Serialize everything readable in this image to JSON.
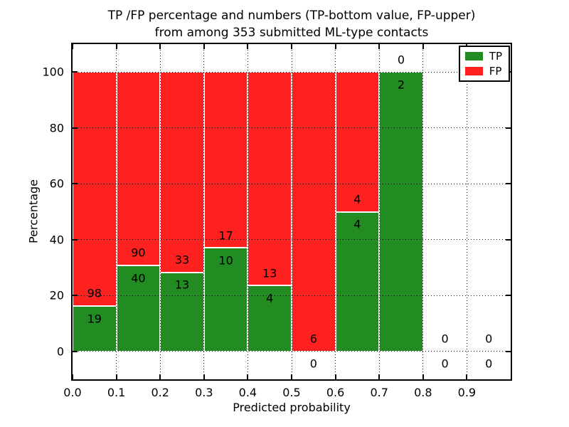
{
  "title": {
    "line1": "TP /FP percentage and numbers (TP-bottom value, FP-upper)",
    "line2": "from among 353 submitted ML-type contacts"
  },
  "chart_data": {
    "type": "bar",
    "stacked": true,
    "title": "TP /FP percentage and numbers (TP-bottom value, FP-upper)\nfrom among 353 submitted ML-type contacts",
    "xlabel": "Predicted probability",
    "ylabel": "Percentage",
    "xlim": [
      0.0,
      1.0
    ],
    "ylim": [
      -10,
      110
    ],
    "x_tick_values": [
      0.0,
      0.1,
      0.2,
      0.3,
      0.4,
      0.5,
      0.6,
      0.7,
      0.8,
      0.9
    ],
    "x_tick_labels": [
      "0.0",
      "0.1",
      "0.2",
      "0.3",
      "0.4",
      "0.5",
      "0.6",
      "0.7",
      "0.8",
      "0.9"
    ],
    "y_tick_values": [
      0,
      20,
      40,
      60,
      80,
      100
    ],
    "y_tick_labels": [
      "0",
      "20",
      "40",
      "60",
      "80",
      "100"
    ],
    "grid": "dotted",
    "legend_position": "upper right",
    "total_contacts": 353,
    "series": [
      {
        "name": "TP",
        "color": "#228b22"
      },
      {
        "name": "FP",
        "color": "#ff2020"
      }
    ],
    "bins": [
      {
        "x_range": [
          0.0,
          0.1
        ],
        "tp": 19,
        "fp": 98,
        "tp_pct": 16.2
      },
      {
        "x_range": [
          0.1,
          0.2
        ],
        "tp": 40,
        "fp": 90,
        "tp_pct": 30.8
      },
      {
        "x_range": [
          0.2,
          0.3
        ],
        "tp": 13,
        "fp": 33,
        "tp_pct": 28.3
      },
      {
        "x_range": [
          0.3,
          0.4
        ],
        "tp": 10,
        "fp": 17,
        "tp_pct": 37.0
      },
      {
        "x_range": [
          0.4,
          0.5
        ],
        "tp": 4,
        "fp": 13,
        "tp_pct": 23.5
      },
      {
        "x_range": [
          0.5,
          0.6
        ],
        "tp": 0,
        "fp": 6,
        "tp_pct": 0.0
      },
      {
        "x_range": [
          0.6,
          0.7
        ],
        "tp": 4,
        "fp": 4,
        "tp_pct": 50.0
      },
      {
        "x_range": [
          0.7,
          0.8
        ],
        "tp": 2,
        "fp": 0,
        "tp_pct": 100.0
      },
      {
        "x_range": [
          0.8,
          0.9
        ],
        "tp": 0,
        "fp": 0,
        "tp_pct": null
      },
      {
        "x_range": [
          0.9,
          1.0
        ],
        "tp": 0,
        "fp": 0,
        "tp_pct": null
      }
    ]
  }
}
